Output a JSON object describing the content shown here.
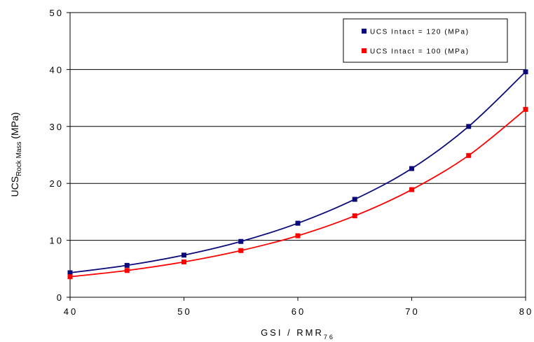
{
  "chart_data": {
    "type": "line",
    "x": [
      40,
      45,
      50,
      55,
      60,
      65,
      70,
      75,
      80
    ],
    "series": [
      {
        "name": "UCS Intact = 120 (MPa)",
        "color": "#0a0a7a",
        "values": [
          4.3,
          5.6,
          7.4,
          9.8,
          13.0,
          17.2,
          22.6,
          30.0,
          39.6
        ]
      },
      {
        "name": "UCS Intact = 100 (MPa)",
        "color": "#ff0000",
        "values": [
          3.6,
          4.7,
          6.2,
          8.2,
          10.8,
          14.3,
          18.9,
          24.9,
          33.0
        ]
      }
    ],
    "xlim": [
      40,
      80
    ],
    "ylim": [
      0,
      50
    ],
    "x_ticks": [
      "40",
      "50",
      "60",
      "70",
      "80"
    ],
    "y_ticks": [
      "0",
      "10",
      "20",
      "30",
      "40",
      "50"
    ],
    "xlabel": {
      "main": "GSI / RMR",
      "sub": "76"
    },
    "ylabel": {
      "main": "UCS",
      "sub": "Rock Mass",
      "tail": " (MPa)"
    },
    "grid": "horizontal",
    "legend": "top-right"
  }
}
